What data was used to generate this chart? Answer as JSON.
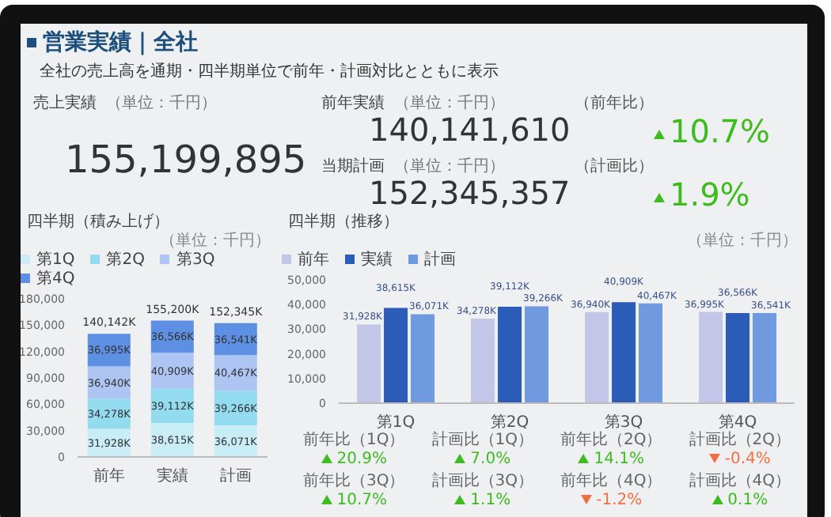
{
  "chart_data": [
    {
      "type": "other",
      "title": "営業実績｜全社",
      "subtitle": "全社の売上高を通期・四半期単位で前年・計画対比とともに表示",
      "categories": [
        "売上実績",
        "前年実績",
        "当期計画"
      ],
      "value_labels": [
        "155,199,895",
        "140,141,610",
        "152,345,357"
      ],
      "annotations": [
        "（単位：千円）",
        "（単位：千円）",
        "（単位：千円）"
      ]
    },
    {
      "type": "other",
      "categories": [
        "（前年比）",
        "（計画比）"
      ],
      "values": [
        10.7,
        1.9
      ],
      "value_labels": [
        "10.7%",
        "1.9%"
      ],
      "colors": [
        "#3dbb1f",
        "#3dbb1f"
      ]
    },
    {
      "type": "bar",
      "title": "四半期（積み上げ）",
      "annotations": [
        "（単位：千円）"
      ],
      "stacked": true,
      "legend": "top left",
      "categories": [
        "前年",
        "実績",
        "計画"
      ],
      "ylim": [
        0,
        180000
      ],
      "yticks": [
        {
          "value": 0,
          "label": "0"
        },
        {
          "value": 30000,
          "label": "30,000"
        },
        {
          "value": 60000,
          "label": "60,000"
        },
        {
          "value": 90000,
          "label": "90,000"
        },
        {
          "value": 120000,
          "label": "120,000"
        },
        {
          "value": 150000,
          "label": "150,000"
        },
        {
          "value": 180000,
          "label": "180,000"
        }
      ],
      "totals": [
        "140,142K",
        "155,200K",
        "152,345K"
      ],
      "series": [
        {
          "name": "第1Q",
          "color": "#c8edf7",
          "values": [
            31928,
            38615,
            36071
          ],
          "value_labels": [
            "31,928K",
            "38,615K",
            "36,071K"
          ]
        },
        {
          "name": "第2Q",
          "color": "#93dbee",
          "values": [
            34278,
            39112,
            39266
          ],
          "value_labels": [
            "34,278K",
            "39,112K",
            "39,266K"
          ]
        },
        {
          "name": "第3Q",
          "color": "#aec4f2",
          "values": [
            36940,
            40909,
            40467
          ],
          "value_labels": [
            "36,940K",
            "40,909K",
            "40,467K"
          ]
        },
        {
          "name": "第4Q",
          "color": "#5d90e2",
          "values": [
            36995,
            36566,
            36541
          ],
          "value_labels": [
            "36,995K",
            "36,566K",
            "36,541K"
          ]
        }
      ]
    },
    {
      "type": "bar",
      "title": "四半期（推移）",
      "annotations": [
        "（単位：千円）"
      ],
      "legend": "top left",
      "categories": [
        "第1Q",
        "第2Q",
        "第3Q",
        "第4Q"
      ],
      "ylim": [
        0,
        50000
      ],
      "yticks": [
        {
          "value": 0,
          "label": "0"
        },
        {
          "value": 10000,
          "label": "10,000"
        },
        {
          "value": 20000,
          "label": "20,000"
        },
        {
          "value": 30000,
          "label": "30,000"
        },
        {
          "value": 40000,
          "label": "40,000"
        },
        {
          "value": 50000,
          "label": "50,000"
        }
      ],
      "series": [
        {
          "name": "前年",
          "color": "#c3c6e6",
          "values": [
            31928,
            34278,
            36940,
            36995
          ],
          "value_labels": [
            "31,928K",
            "34,278K",
            "36,940K",
            "36,995K"
          ]
        },
        {
          "name": "実績",
          "color": "#2b5cb8",
          "values": [
            38615,
            39112,
            40909,
            36566
          ],
          "value_labels": [
            "38,615K",
            "39,112K",
            "40,909K",
            "36,566K"
          ]
        },
        {
          "name": "計画",
          "color": "#6f9ae0",
          "values": [
            36071,
            39266,
            40467,
            36541
          ],
          "value_labels": [
            "36,071K",
            "39,266K",
            "40,467K",
            "36,541K"
          ]
        }
      ]
    },
    {
      "type": "other",
      "categories": [
        "前年比（1Q）",
        "計画比（1Q）",
        "前年比（2Q）",
        "計画比（2Q）",
        "前年比（3Q）",
        "計画比（3Q）",
        "前年比（4Q）",
        "計画比（4Q）"
      ],
      "values": [
        20.9,
        7.0,
        14.1,
        -0.4,
        10.7,
        1.1,
        -1.2,
        0.1
      ],
      "value_labels": [
        "20.9%",
        "7.0%",
        "14.1%",
        "-0.4%",
        "10.7%",
        "1.1%",
        "-1.2%",
        "0.1%"
      ],
      "colors": [
        "#3dbb1f",
        "#3dbb1f",
        "#3dbb1f",
        "#f07040",
        "#3dbb1f",
        "#3dbb1f",
        "#f07040",
        "#3dbb1f"
      ]
    }
  ]
}
